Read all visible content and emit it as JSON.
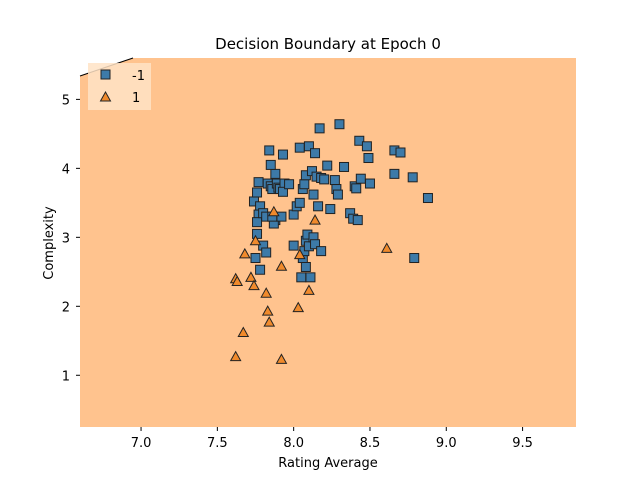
{
  "chart_data": {
    "type": "scatter",
    "title": "Decision Boundary at Epoch 0",
    "xlabel": "Rating Average",
    "ylabel": "Complexity",
    "xlim": [
      6.6,
      9.85
    ],
    "ylim": [
      0.25,
      5.6
    ],
    "xticks": [
      "7.0",
      "7.5",
      "8.0",
      "8.5",
      "9.0",
      "9.5"
    ],
    "yticks": [
      "1",
      "2",
      "3",
      "4",
      "5"
    ],
    "region_color": "#ffc38e",
    "legend_placement": "top-left",
    "series": [
      {
        "name": "-1",
        "marker": "square",
        "color": "#3d7aa8",
        "points": [
          [
            7.74,
            3.52
          ],
          [
            7.77,
            3.8
          ],
          [
            7.76,
            3.65
          ],
          [
            7.78,
            3.45
          ],
          [
            7.77,
            3.33
          ],
          [
            7.76,
            3.22
          ],
          [
            7.76,
            3.05
          ],
          [
            7.8,
            3.35
          ],
          [
            7.82,
            3.3
          ],
          [
            7.83,
            3.78
          ],
          [
            7.85,
            3.74
          ],
          [
            7.86,
            3.7
          ],
          [
            7.88,
            3.92
          ],
          [
            7.89,
            3.78
          ],
          [
            7.9,
            3.72
          ],
          [
            7.91,
            3.7
          ],
          [
            7.88,
            3.25
          ],
          [
            7.87,
            3.2
          ],
          [
            7.86,
            3.3
          ],
          [
            7.92,
            3.3
          ],
          [
            7.84,
            4.26
          ],
          [
            7.85,
            4.05
          ],
          [
            7.93,
            4.2
          ],
          [
            7.94,
            3.78
          ],
          [
            7.93,
            3.66
          ],
          [
            7.97,
            3.77
          ],
          [
            8.0,
            3.33
          ],
          [
            8.02,
            3.45
          ],
          [
            8.04,
            3.5
          ],
          [
            8.04,
            4.3
          ],
          [
            8.06,
            3.7
          ],
          [
            8.07,
            3.77
          ],
          [
            8.08,
            3.9
          ],
          [
            8.1,
            4.32
          ],
          [
            8.12,
            3.96
          ],
          [
            8.13,
            3.62
          ],
          [
            8.14,
            4.22
          ],
          [
            8.15,
            3.88
          ],
          [
            8.16,
            3.45
          ],
          [
            8.17,
            4.58
          ],
          [
            8.18,
            3.86
          ],
          [
            8.2,
            3.84
          ],
          [
            8.22,
            4.04
          ],
          [
            8.24,
            3.41
          ],
          [
            8.27,
            3.83
          ],
          [
            8.28,
            3.7
          ],
          [
            8.29,
            3.62
          ],
          [
            8.3,
            4.64
          ],
          [
            8.33,
            4.02
          ],
          [
            8.37,
            3.35
          ],
          [
            8.39,
            3.27
          ],
          [
            8.4,
            3.74
          ],
          [
            8.41,
            3.71
          ],
          [
            8.42,
            3.25
          ],
          [
            8.43,
            4.4
          ],
          [
            8.44,
            3.85
          ],
          [
            8.48,
            4.32
          ],
          [
            8.49,
            4.15
          ],
          [
            8.5,
            3.78
          ],
          [
            8.66,
            3.92
          ],
          [
            8.66,
            4.26
          ],
          [
            8.7,
            4.23
          ],
          [
            8.78,
            3.87
          ],
          [
            8.79,
            2.7
          ],
          [
            8.88,
            3.57
          ],
          [
            8.0,
            2.88
          ],
          [
            8.05,
            2.42
          ],
          [
            8.06,
            2.7
          ],
          [
            8.07,
            2.8
          ],
          [
            8.08,
            2.95
          ],
          [
            8.08,
            2.57
          ],
          [
            8.09,
            3.04
          ],
          [
            8.1,
            2.87
          ],
          [
            8.11,
            2.42
          ],
          [
            8.13,
            3.0
          ],
          [
            8.14,
            2.9
          ],
          [
            8.18,
            2.8
          ],
          [
            7.75,
            2.7
          ],
          [
            7.78,
            2.53
          ],
          [
            7.8,
            2.88
          ],
          [
            7.82,
            2.78
          ]
        ]
      },
      {
        "name": "1",
        "marker": "triangle",
        "color": "#f08a2c",
        "points": [
          [
            7.62,
            1.27
          ],
          [
            7.62,
            2.4
          ],
          [
            7.63,
            2.36
          ],
          [
            7.67,
            1.62
          ],
          [
            7.68,
            2.76
          ],
          [
            7.72,
            2.42
          ],
          [
            7.74,
            2.3
          ],
          [
            7.75,
            2.95
          ],
          [
            7.82,
            2.19
          ],
          [
            7.83,
            1.93
          ],
          [
            7.84,
            1.77
          ],
          [
            7.87,
            3.37
          ],
          [
            7.92,
            2.58
          ],
          [
            7.92,
            1.23
          ],
          [
            8.03,
            1.98
          ],
          [
            8.04,
            2.75
          ],
          [
            8.1,
            2.23
          ],
          [
            8.14,
            3.25
          ],
          [
            8.61,
            2.84
          ]
        ]
      }
    ]
  }
}
